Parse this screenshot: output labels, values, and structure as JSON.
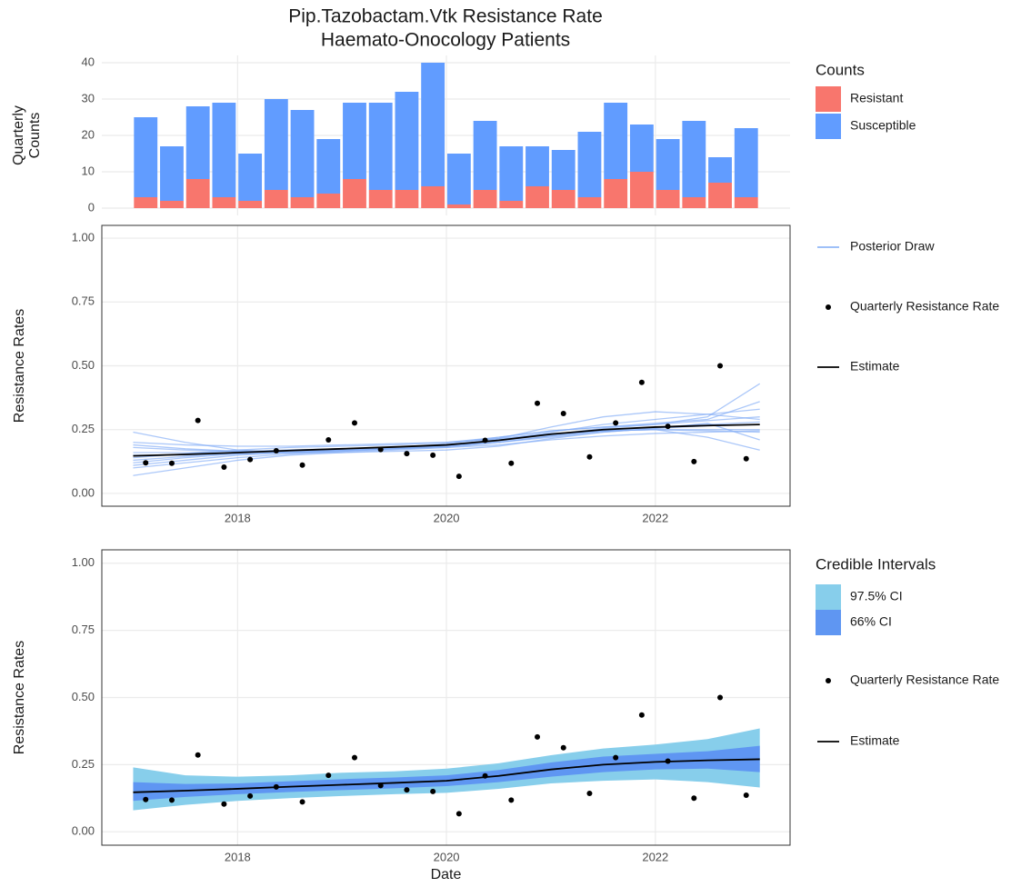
{
  "chart_data": [
    {
      "type": "bar",
      "stacked": true,
      "title": "Pip.Tazobactam.Vtk Resistance Rate",
      "subtitle": "Haemato-Onocology Patients",
      "ylabel": [
        "Quarterly",
        "Counts"
      ],
      "legend_title": "Counts",
      "x": [
        2017.12,
        2017.37,
        2017.62,
        2017.87,
        2018.12,
        2018.37,
        2018.62,
        2018.87,
        2019.12,
        2019.37,
        2019.62,
        2019.87,
        2020.12,
        2020.37,
        2020.62,
        2020.87,
        2021.12,
        2021.37,
        2021.62,
        2021.87,
        2022.12,
        2022.37,
        2022.62,
        2022.87
      ],
      "series": [
        {
          "name": "Resistant",
          "color": "#F8766D",
          "values": [
            3,
            2,
            8,
            3,
            2,
            5,
            3,
            4,
            8,
            5,
            5,
            6,
            1,
            5,
            2,
            6,
            5,
            3,
            8,
            10,
            5,
            3,
            7,
            3
          ]
        },
        {
          "name": "Susceptible",
          "color": "#619CFF",
          "values": [
            22,
            15,
            20,
            26,
            13,
            25,
            24,
            15,
            21,
            24,
            27,
            34,
            14,
            19,
            15,
            11,
            11,
            18,
            21,
            13,
            14,
            21,
            7,
            19
          ]
        }
      ],
      "xlim": [
        2016.7,
        2023.29
      ],
      "xticks": [
        2018,
        2020,
        2022
      ],
      "xtick_labels": false,
      "ylim": [
        -2,
        42
      ],
      "yticks": [
        0,
        10,
        20,
        30,
        40
      ],
      "grid": true,
      "box": false
    },
    {
      "type": "line",
      "ylabel": "Resistance Rates",
      "draws": {
        "name": "Posterior Draw",
        "color": "#7fabf6",
        "x": [
          2017,
          2017.5,
          2018,
          2018.5,
          2019,
          2019.5,
          2020,
          2020.5,
          2021,
          2021.5,
          2022,
          2022.5,
          2023
        ],
        "values": [
          [
            0.1,
            0.12,
            0.14,
            0.155,
            0.165,
            0.175,
            0.185,
            0.205,
            0.23,
            0.255,
            0.27,
            0.285,
            0.3
          ],
          [
            0.2,
            0.19,
            0.185,
            0.185,
            0.19,
            0.195,
            0.2,
            0.215,
            0.235,
            0.245,
            0.25,
            0.245,
            0.24
          ],
          [
            0.13,
            0.145,
            0.16,
            0.17,
            0.175,
            0.18,
            0.19,
            0.21,
            0.24,
            0.27,
            0.29,
            0.31,
            0.33
          ],
          [
            0.24,
            0.2,
            0.17,
            0.16,
            0.165,
            0.175,
            0.19,
            0.21,
            0.23,
            0.245,
            0.25,
            0.25,
            0.25
          ],
          [
            0.07,
            0.1,
            0.13,
            0.15,
            0.16,
            0.17,
            0.18,
            0.2,
            0.225,
            0.245,
            0.26,
            0.27,
            0.28
          ],
          [
            0.16,
            0.16,
            0.165,
            0.17,
            0.175,
            0.18,
            0.19,
            0.215,
            0.26,
            0.3,
            0.32,
            0.31,
            0.29
          ],
          [
            0.15,
            0.15,
            0.155,
            0.16,
            0.17,
            0.18,
            0.195,
            0.22,
            0.245,
            0.26,
            0.27,
            0.3,
            0.43
          ],
          [
            0.18,
            0.17,
            0.165,
            0.165,
            0.17,
            0.175,
            0.18,
            0.19,
            0.21,
            0.225,
            0.235,
            0.24,
            0.245
          ],
          [
            0.12,
            0.14,
            0.155,
            0.165,
            0.17,
            0.175,
            0.185,
            0.2,
            0.225,
            0.245,
            0.25,
            0.22,
            0.17
          ],
          [
            0.14,
            0.155,
            0.17,
            0.18,
            0.185,
            0.19,
            0.2,
            0.22,
            0.245,
            0.26,
            0.275,
            0.29,
            0.36
          ],
          [
            0.19,
            0.175,
            0.165,
            0.16,
            0.16,
            0.165,
            0.17,
            0.185,
            0.215,
            0.24,
            0.255,
            0.265,
            0.27
          ],
          [
            0.11,
            0.13,
            0.15,
            0.16,
            0.168,
            0.176,
            0.186,
            0.2,
            0.22,
            0.24,
            0.255,
            0.275,
            0.21
          ]
        ]
      },
      "points": {
        "name": "Quarterly Resistance Rate",
        "color": "#000000",
        "x": [
          2017.12,
          2017.37,
          2017.62,
          2017.87,
          2018.12,
          2018.37,
          2018.62,
          2018.87,
          2019.12,
          2019.37,
          2019.62,
          2019.87,
          2020.12,
          2020.37,
          2020.62,
          2020.87,
          2021.12,
          2021.37,
          2021.62,
          2021.87,
          2022.12,
          2022.37,
          2022.62,
          2022.87
        ],
        "values": [
          0.12,
          0.118,
          0.286,
          0.103,
          0.133,
          0.167,
          0.111,
          0.21,
          0.276,
          0.172,
          0.156,
          0.15,
          0.067,
          0.208,
          0.118,
          0.353,
          0.313,
          0.143,
          0.276,
          0.435,
          0.263,
          0.125,
          0.5,
          0.136
        ]
      },
      "estimate": {
        "name": "Estimate",
        "color": "#000000",
        "x": [
          2017,
          2017.5,
          2018,
          2018.5,
          2019,
          2019.5,
          2020,
          2020.5,
          2021,
          2021.5,
          2022,
          2022.5,
          2023
        ],
        "values": [
          0.147,
          0.153,
          0.16,
          0.168,
          0.175,
          0.182,
          0.19,
          0.208,
          0.232,
          0.25,
          0.26,
          0.266,
          0.27
        ]
      },
      "xlim": [
        2016.7,
        2023.29
      ],
      "xticks": [
        2018,
        2020,
        2022
      ],
      "xtick_labels": true,
      "ylim": [
        -0.05,
        1.05
      ],
      "yticks": [
        {
          "value": 0,
          "label": "0.00"
        },
        {
          "value": 0.25,
          "label": "0.25"
        },
        {
          "value": 0.5,
          "label": "0.50"
        },
        {
          "value": 0.75,
          "label": "0.75"
        },
        {
          "value": 1,
          "label": "1.00"
        }
      ],
      "grid": true,
      "box": true
    },
    {
      "type": "band",
      "ylabel": "Resistance Rates",
      "xlabel": "Date",
      "legend_title": "Credible Intervals",
      "bands": [
        {
          "name": "97.5% CI",
          "color": "#87CEEB",
          "x": [
            2017,
            2017.5,
            2018,
            2018.5,
            2019,
            2019.5,
            2020,
            2020.5,
            2021,
            2021.5,
            2022,
            2022.5,
            2023
          ],
          "lower": [
            0.08,
            0.1,
            0.115,
            0.125,
            0.133,
            0.14,
            0.145,
            0.16,
            0.18,
            0.19,
            0.195,
            0.185,
            0.165
          ],
          "upper": [
            0.24,
            0.21,
            0.205,
            0.21,
            0.22,
            0.225,
            0.235,
            0.255,
            0.285,
            0.31,
            0.325,
            0.345,
            0.385
          ]
        },
        {
          "name": "66% CI",
          "color": "#5f96f2",
          "x": [
            2017,
            2017.5,
            2018,
            2018.5,
            2019,
            2019.5,
            2020,
            2020.5,
            2021,
            2021.5,
            2022,
            2022.5,
            2023
          ],
          "lower": [
            0.115,
            0.13,
            0.14,
            0.148,
            0.155,
            0.162,
            0.17,
            0.185,
            0.205,
            0.222,
            0.232,
            0.235,
            0.222
          ],
          "upper": [
            0.185,
            0.178,
            0.18,
            0.188,
            0.196,
            0.202,
            0.21,
            0.23,
            0.258,
            0.28,
            0.29,
            0.3,
            0.32
          ]
        }
      ],
      "points": {
        "name": "Quarterly Resistance Rate",
        "color": "#000000",
        "x": [
          2017.12,
          2017.37,
          2017.62,
          2017.87,
          2018.12,
          2018.37,
          2018.62,
          2018.87,
          2019.12,
          2019.37,
          2019.62,
          2019.87,
          2020.12,
          2020.37,
          2020.62,
          2020.87,
          2021.12,
          2021.37,
          2021.62,
          2021.87,
          2022.12,
          2022.37,
          2022.62,
          2022.87
        ],
        "values": [
          0.12,
          0.118,
          0.286,
          0.103,
          0.133,
          0.167,
          0.111,
          0.21,
          0.276,
          0.172,
          0.156,
          0.15,
          0.067,
          0.208,
          0.118,
          0.353,
          0.313,
          0.143,
          0.276,
          0.435,
          0.263,
          0.125,
          0.5,
          0.136
        ]
      },
      "estimate": {
        "name": "Estimate",
        "color": "#000000",
        "x": [
          2017,
          2017.5,
          2018,
          2018.5,
          2019,
          2019.5,
          2020,
          2020.5,
          2021,
          2021.5,
          2022,
          2022.5,
          2023
        ],
        "values": [
          0.147,
          0.153,
          0.16,
          0.168,
          0.175,
          0.182,
          0.19,
          0.208,
          0.232,
          0.25,
          0.26,
          0.266,
          0.27
        ]
      },
      "xlim": [
        2016.7,
        2023.29
      ],
      "xticks": [
        2018,
        2020,
        2022
      ],
      "xtick_labels": true,
      "ylim": [
        -0.05,
        1.05
      ],
      "yticks": [
        {
          "value": 0,
          "label": "0.00"
        },
        {
          "value": 0.25,
          "label": "0.25"
        },
        {
          "value": 0.5,
          "label": "0.50"
        },
        {
          "value": 0.75,
          "label": "0.75"
        },
        {
          "value": 1,
          "label": "1.00"
        }
      ],
      "grid": true,
      "box": true
    }
  ]
}
